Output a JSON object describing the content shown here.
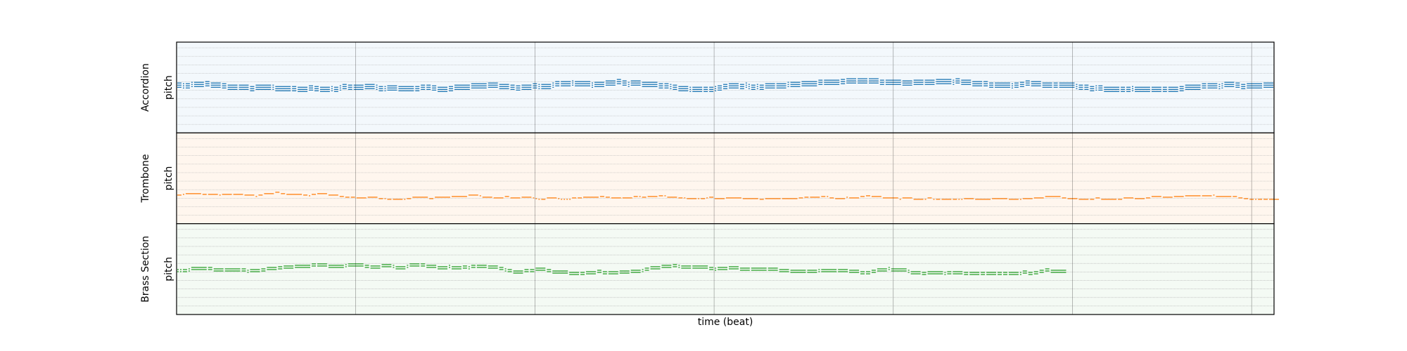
{
  "chart_data": {
    "type": "pianoroll",
    "xlabel": "time (beat)",
    "xlim": [
      0,
      98
    ],
    "downbeats": [
      0,
      16,
      32,
      48,
      64,
      80,
      96
    ],
    "tracks": [
      {
        "name": "Accordion",
        "ylabel": "pitch",
        "color": "#1f77b4",
        "bg_color": "#f3f8fc",
        "ylim": [
          0,
          128
        ],
        "pitch_center": 64,
        "end_beat": 98,
        "stacked_notes": 3
      },
      {
        "name": "Trombone",
        "ylabel": "pitch",
        "color": "#ff7f0e",
        "bg_color": "#fff6ee",
        "ylim": [
          0,
          128
        ],
        "pitch_center": 40,
        "end_beat": 98,
        "stacked_notes": 1
      },
      {
        "name": "Brass Section",
        "ylabel": "pitch",
        "color": "#2ca02c",
        "bg_color": "#f4faf4",
        "ylim": [
          0,
          128
        ],
        "pitch_center": 62,
        "end_beat": 79,
        "stacked_notes": 2
      }
    ]
  }
}
